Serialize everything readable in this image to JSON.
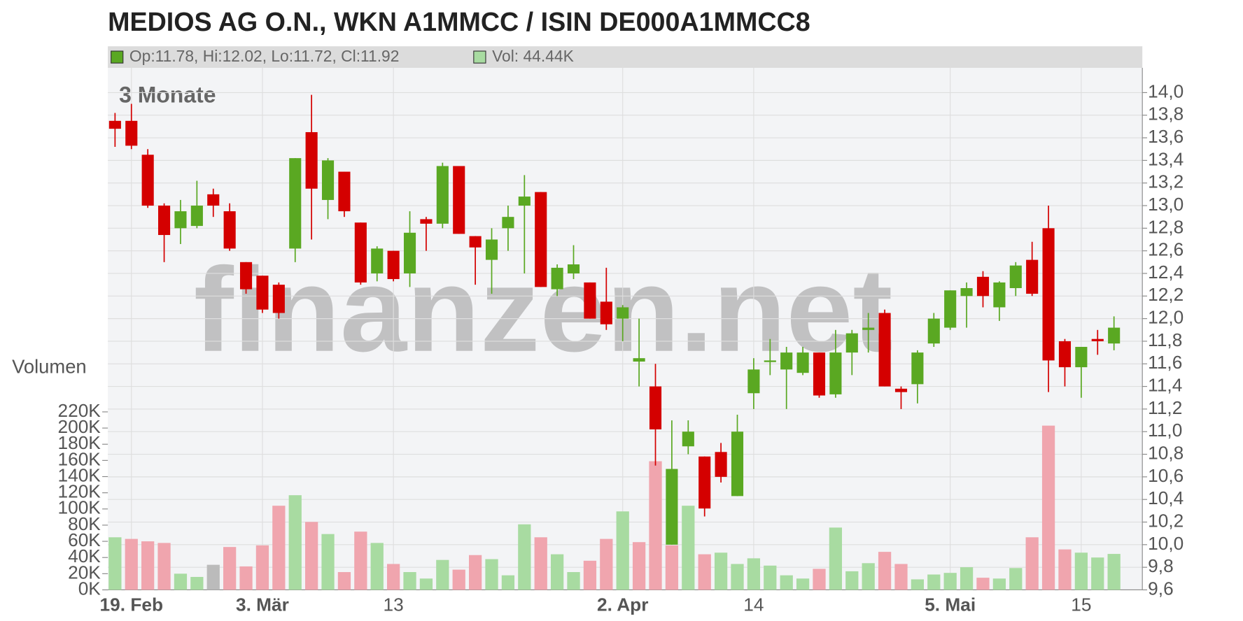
{
  "chart_data": {
    "type": "candlestick",
    "title": "MEDIOS AG O.N., WKN A1MMCC / ISIN DE000A1MMCC8",
    "ohlc_label": "Op:11.78, Hi:12.02, Lo:11.72, Cl:11.92",
    "volume_label": "Vol: 44.44K",
    "period_label": "3 Monate",
    "volume_axis_label": "Volumen",
    "watermark": "finanzen.net",
    "categories": [
      null,
      "19. Feb",
      null,
      null,
      null,
      null,
      null,
      null,
      null,
      "3. Mär",
      null,
      null,
      null,
      null,
      null,
      null,
      null,
      "13",
      null,
      null,
      null,
      null,
      null,
      null,
      null,
      null,
      null,
      null,
      null,
      null,
      null,
      "2. Apr",
      null,
      null,
      null,
      null,
      null,
      null,
      null,
      "14",
      null,
      null,
      null,
      null,
      null,
      null,
      null,
      null,
      null,
      null,
      null,
      "5. Mai",
      null,
      null,
      null,
      null,
      null,
      null,
      null,
      "15",
      null,
      null
    ],
    "open": [
      13.75,
      13.75,
      13.45,
      13.0,
      12.8,
      12.82,
      13.1,
      12.95,
      12.5,
      12.38,
      12.3,
      12.62,
      13.65,
      13.05,
      13.3,
      12.85,
      12.4,
      12.6,
      12.4,
      12.88,
      12.84,
      13.35,
      12.73,
      12.52,
      12.8,
      13.0,
      13.12,
      12.26,
      12.4,
      12.32,
      12.15,
      12.0,
      11.62,
      11.4,
      10.0,
      10.87,
      10.78,
      10.82,
      10.43,
      11.34,
      11.62,
      11.55,
      11.52,
      11.7,
      11.33,
      11.7,
      11.9,
      12.05,
      11.38,
      11.42,
      11.78,
      11.92,
      12.2,
      12.37,
      12.1,
      12.27,
      12.52,
      12.8,
      11.8,
      11.57,
      11.82,
      11.78
    ],
    "high": [
      13.82,
      13.9,
      13.5,
      13.02,
      13.05,
      13.22,
      13.15,
      13.02,
      12.5,
      12.38,
      12.32,
      13.42,
      13.98,
      13.42,
      13.3,
      12.85,
      12.64,
      12.6,
      12.95,
      12.9,
      13.38,
      13.35,
      12.73,
      12.8,
      13.0,
      13.27,
      13.12,
      12.48,
      12.65,
      12.32,
      12.45,
      12.12,
      12.0,
      11.6,
      11.1,
      11.1,
      10.78,
      10.9,
      11.15,
      11.65,
      11.82,
      11.75,
      11.75,
      11.7,
      11.9,
      11.9,
      12.05,
      12.08,
      11.4,
      11.72,
      12.05,
      12.25,
      12.32,
      12.42,
      12.33,
      12.5,
      12.68,
      13.0,
      11.82,
      11.75,
      11.9,
      12.02
    ],
    "low": [
      13.52,
      13.5,
      12.98,
      12.5,
      12.66,
      12.8,
      12.9,
      12.6,
      12.22,
      12.05,
      12.0,
      12.5,
      12.7,
      12.88,
      12.9,
      12.3,
      12.33,
      12.33,
      12.28,
      12.6,
      12.8,
      12.75,
      12.3,
      12.22,
      12.6,
      12.4,
      12.28,
      12.2,
      12.35,
      12.0,
      11.9,
      11.8,
      11.4,
      10.7,
      10.0,
      10.8,
      10.25,
      10.55,
      10.43,
      11.2,
      11.5,
      11.2,
      11.5,
      11.3,
      11.3,
      11.5,
      11.7,
      11.4,
      11.2,
      11.25,
      11.75,
      11.9,
      11.92,
      12.1,
      11.98,
      12.2,
      12.2,
      11.35,
      11.4,
      11.3,
      11.68,
      11.72
    ],
    "close": [
      13.68,
      13.53,
      13.0,
      12.74,
      12.95,
      13.0,
      13.0,
      12.62,
      12.26,
      12.08,
      12.05,
      13.42,
      13.15,
      13.4,
      12.95,
      12.32,
      12.62,
      12.35,
      12.76,
      12.84,
      13.35,
      12.75,
      12.63,
      12.7,
      12.9,
      13.08,
      12.28,
      12.45,
      12.48,
      12.0,
      11.95,
      12.1,
      11.65,
      11.02,
      10.67,
      11.0,
      10.32,
      10.6,
      11.0,
      11.55,
      11.63,
      11.7,
      11.7,
      11.32,
      11.7,
      11.87,
      11.92,
      11.4,
      11.35,
      11.7,
      12.0,
      12.25,
      12.27,
      12.2,
      12.32,
      12.47,
      12.22,
      11.63,
      11.57,
      11.75,
      11.8,
      11.92
    ],
    "volume": [
      65000,
      63000,
      60000,
      58000,
      20000,
      16000,
      31000,
      53000,
      29000,
      55000,
      104000,
      117000,
      84000,
      69000,
      22000,
      72000,
      58000,
      32000,
      22000,
      14000,
      37000,
      25000,
      43000,
      38000,
      18000,
      81000,
      65000,
      44000,
      22000,
      36000,
      63000,
      97000,
      59000,
      159000,
      55000,
      104000,
      44000,
      46000,
      32000,
      39000,
      30000,
      18000,
      14000,
      26000,
      77000,
      23000,
      33000,
      47000,
      32000,
      13000,
      19000,
      21000,
      28000,
      15000,
      14000,
      27000,
      65000,
      203000,
      50000,
      46000,
      40000,
      44440
    ],
    "volume_trend": [
      "up",
      "down",
      "down",
      "down",
      "up",
      "up",
      "flat",
      "down",
      "down",
      "down",
      "down",
      "up",
      "down",
      "up",
      "down",
      "down",
      "up",
      "down",
      "up",
      "up",
      "up",
      "down",
      "down",
      "up",
      "up",
      "up",
      "down",
      "up",
      "up",
      "down",
      "down",
      "up",
      "down",
      "down",
      "down",
      "up",
      "down",
      "up",
      "up",
      "up",
      "up",
      "up",
      "up",
      "down",
      "up",
      "up",
      "up",
      "down",
      "down",
      "up",
      "up",
      "up",
      "up",
      "down",
      "up",
      "up",
      "down",
      "down",
      "down",
      "up",
      "up",
      "up"
    ],
    "colors": {
      "up": "#5aa822",
      "down": "#d40000",
      "vol_up": "#a8dba1",
      "vol_down": "#f0a5ae",
      "vol_flat": "#bbbbbb"
    },
    "ylim": [
      9.6,
      14.0
    ],
    "yticks": [
      {
        "value": 9.6,
        "label": "9,6"
      },
      {
        "value": 9.8,
        "label": "9,8"
      },
      {
        "value": 10.0,
        "label": "10,0"
      },
      {
        "value": 10.2,
        "label": "10,2"
      },
      {
        "value": 10.4,
        "label": "10,4"
      },
      {
        "value": 10.6,
        "label": "10,6"
      },
      {
        "value": 10.8,
        "label": "10,8"
      },
      {
        "value": 11.0,
        "label": "11,0"
      },
      {
        "value": 11.2,
        "label": "11,2"
      },
      {
        "value": 11.4,
        "label": "11,4"
      },
      {
        "value": 11.6,
        "label": "11,6"
      },
      {
        "value": 11.8,
        "label": "11,8"
      },
      {
        "value": 12.0,
        "label": "12,0"
      },
      {
        "value": 12.2,
        "label": "12,2"
      },
      {
        "value": 12.4,
        "label": "12,4"
      },
      {
        "value": 12.6,
        "label": "12,6"
      },
      {
        "value": 12.8,
        "label": "12,8"
      },
      {
        "value": 13.0,
        "label": "13,0"
      },
      {
        "value": 13.2,
        "label": "13,2"
      },
      {
        "value": 13.4,
        "label": "13,4"
      },
      {
        "value": 13.6,
        "label": "13,6"
      },
      {
        "value": 13.8,
        "label": "13,8"
      },
      {
        "value": 14.0,
        "label": "14,0"
      }
    ],
    "y2lim": [
      0,
      220000
    ],
    "y2ticks": [
      {
        "value": 0,
        "label": "0K"
      },
      {
        "value": 20000,
        "label": "20K"
      },
      {
        "value": 40000,
        "label": "40K"
      },
      {
        "value": 60000,
        "label": "60K"
      },
      {
        "value": 80000,
        "label": "80K"
      },
      {
        "value": 100000,
        "label": "100K"
      },
      {
        "value": 120000,
        "label": "120K"
      },
      {
        "value": 140000,
        "label": "140K"
      },
      {
        "value": 160000,
        "label": "160K"
      },
      {
        "value": 180000,
        "label": "180K"
      },
      {
        "value": 200000,
        "label": "200K"
      },
      {
        "value": 220000,
        "label": "220K"
      }
    ],
    "grid": true
  }
}
